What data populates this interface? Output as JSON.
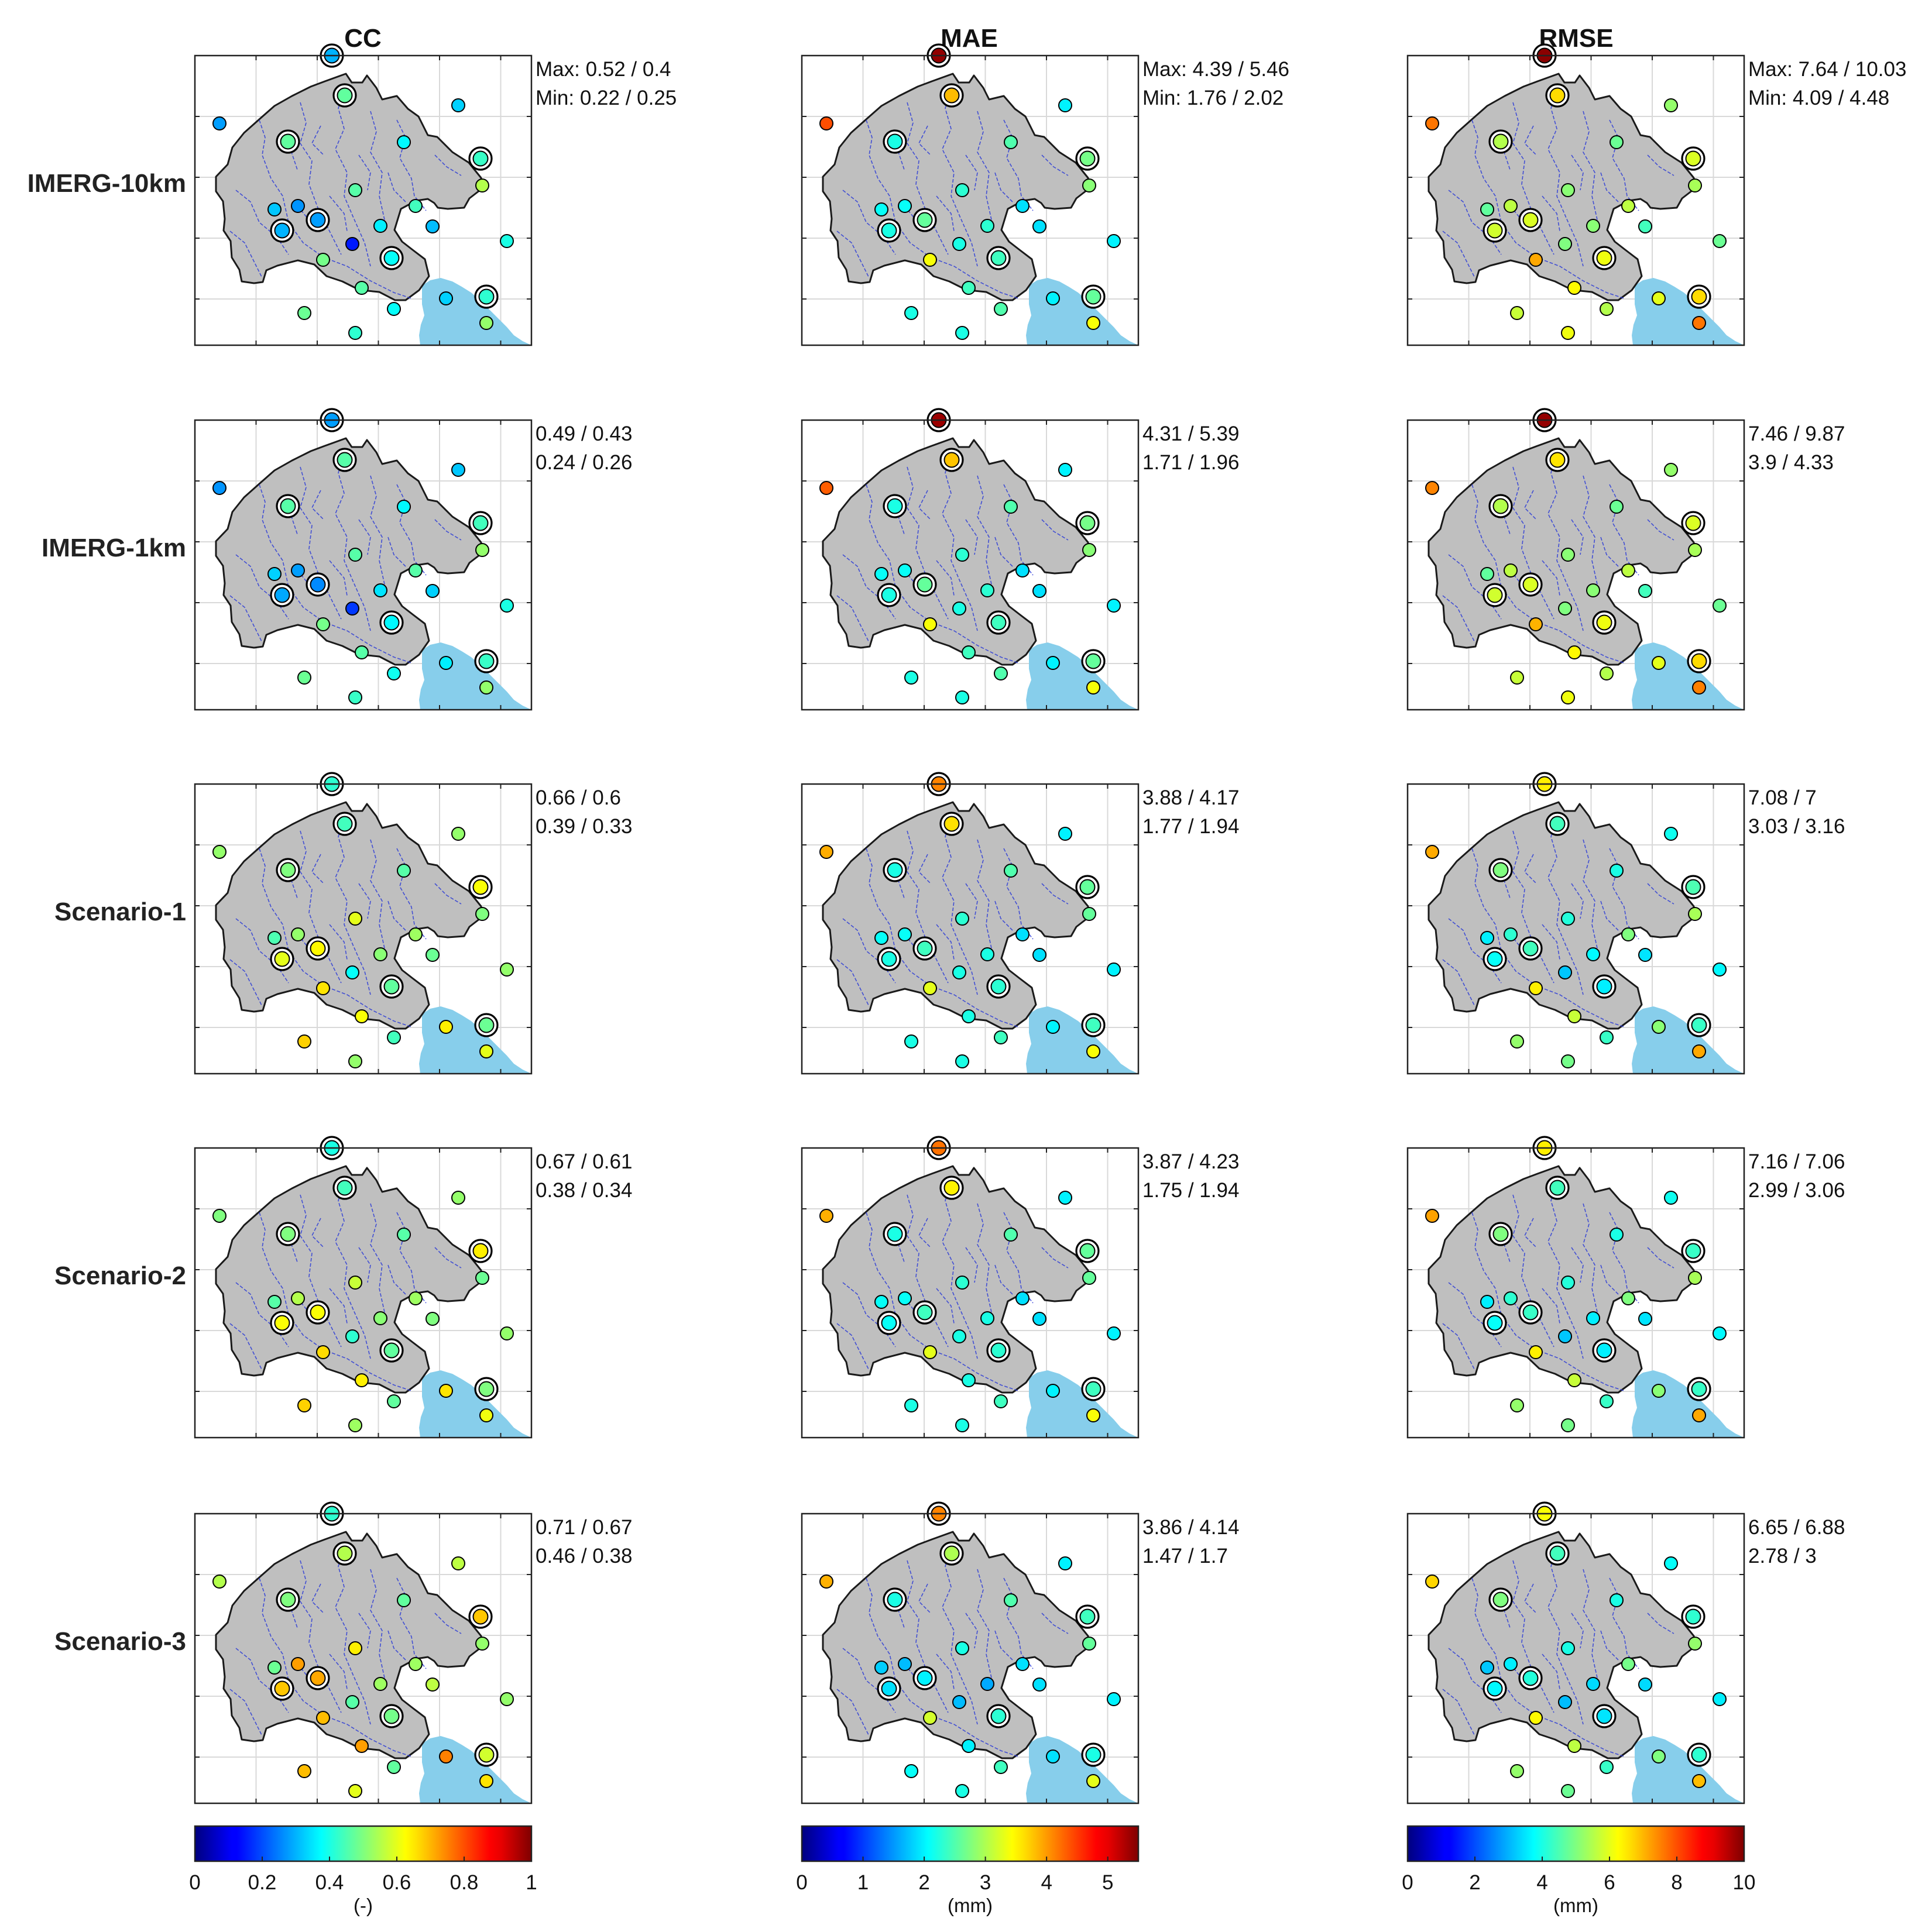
{
  "chart_data": {
    "type": "map-panel-grid",
    "title": "",
    "columns": [
      {
        "metric": "CC",
        "colorbar": {
          "min": 0,
          "max": 1,
          "ticks": [
            "0",
            "0.2",
            "0.4",
            "0.6",
            "0.8",
            "1"
          ],
          "unit": "(-)"
        }
      },
      {
        "metric": "MAE",
        "colorbar": {
          "min": 0,
          "max": 5.5,
          "ticks": [
            "0",
            "1",
            "2",
            "3",
            "4",
            "5"
          ],
          "unit": "(mm)"
        }
      },
      {
        "metric": "RMSE",
        "colorbar": {
          "min": 0,
          "max": 10,
          "ticks": [
            "0",
            "2",
            "4",
            "6",
            "8",
            "10"
          ],
          "unit": "(mm)"
        }
      }
    ],
    "colormap": "jet",
    "rows": [
      {
        "label": "IMERG-10km",
        "stats": [
          {
            "max": "0.52 / 0.4",
            "min": "0.22 / 0.25"
          },
          {
            "max": "4.39 / 5.46",
            "min": "1.76 / 2.02"
          },
          {
            "max": "7.64 / 10.03",
            "min": "4.09 / 4.48"
          }
        ]
      },
      {
        "label": "IMERG-1km",
        "stats": [
          {
            "max": "0.49 / 0.43",
            "min": "0.24 / 0.26"
          },
          {
            "max": "4.31 / 5.39",
            "min": "1.71 / 1.96"
          },
          {
            "max": "7.46 / 9.87",
            "min": "3.9 / 4.33"
          }
        ]
      },
      {
        "label": "Scenario-1",
        "stats": [
          {
            "max": "0.66 / 0.6",
            "min": "0.39 / 0.33"
          },
          {
            "max": "3.88 / 4.17",
            "min": "1.77 / 1.94"
          },
          {
            "max": "7.08 / 7",
            "min": "3.03 / 3.16"
          }
        ]
      },
      {
        "label": "Scenario-2",
        "stats": [
          {
            "max": "0.67 / 0.61",
            "min": "0.38 / 0.34"
          },
          {
            "max": "3.87 / 4.23",
            "min": "1.75 / 1.94"
          },
          {
            "max": "7.16 / 7.06",
            "min": "2.99 / 3.06"
          }
        ]
      },
      {
        "label": "Scenario-3",
        "stats": [
          {
            "max": "0.71 / 0.67",
            "min": "0.46 / 0.38"
          },
          {
            "max": "3.86 / 4.14",
            "min": "1.47 / 1.7"
          },
          {
            "max": "6.65 / 6.88",
            "min": "2.78 / 3"
          }
        ]
      }
    ],
    "stat_prefix": {
      "max": "Max: ",
      "min": "Min: "
    },
    "stations": [
      {
        "id": "s1",
        "circled": true
      },
      {
        "id": "s2",
        "circled": true
      },
      {
        "id": "s3",
        "circled": false
      },
      {
        "id": "s4",
        "circled": false
      },
      {
        "id": "s5",
        "circled": true
      },
      {
        "id": "s6",
        "circled": false
      },
      {
        "id": "s7",
        "circled": true
      },
      {
        "id": "s8",
        "circled": false
      },
      {
        "id": "s9",
        "circled": false
      },
      {
        "id": "s10",
        "circled": false
      },
      {
        "id": "s11",
        "circled": true
      },
      {
        "id": "s12",
        "circled": false
      },
      {
        "id": "s13",
        "circled": true
      },
      {
        "id": "s14",
        "circled": false
      },
      {
        "id": "s15",
        "circled": false
      },
      {
        "id": "s16",
        "circled": false
      },
      {
        "id": "s17",
        "circled": false
      },
      {
        "id": "s18",
        "circled": false
      },
      {
        "id": "s19",
        "circled": true
      },
      {
        "id": "s20",
        "circled": false
      },
      {
        "id": "s21",
        "circled": false
      },
      {
        "id": "s22",
        "circled": false
      },
      {
        "id": "s23",
        "circled": true
      },
      {
        "id": "s24",
        "circled": false
      },
      {
        "id": "s25",
        "circled": false
      },
      {
        "id": "s26",
        "circled": false
      },
      {
        "id": "s27",
        "circled": false
      }
    ],
    "values": {
      "CC": [
        [
          0.3,
          0.47,
          0.28,
          0.33,
          0.47,
          0.37,
          0.43,
          0.55,
          0.32,
          0.27,
          0.3,
          0.46,
          0.28,
          0.44,
          0.36,
          0.31,
          0.4,
          0.15,
          0.38,
          0.49,
          0.46,
          0.33,
          0.42,
          0.48,
          0.38,
          0.52,
          0.42
        ],
        [
          0.28,
          0.46,
          0.27,
          0.32,
          0.46,
          0.37,
          0.44,
          0.52,
          0.33,
          0.28,
          0.29,
          0.46,
          0.26,
          0.46,
          0.35,
          0.33,
          0.4,
          0.18,
          0.37,
          0.49,
          0.46,
          0.36,
          0.43,
          0.48,
          0.39,
          0.52,
          0.43
        ],
        [
          0.42,
          0.44,
          0.52,
          0.52,
          0.5,
          0.46,
          0.62,
          0.5,
          0.45,
          0.52,
          0.6,
          0.6,
          0.63,
          0.53,
          0.51,
          0.48,
          0.52,
          0.38,
          0.47,
          0.65,
          0.62,
          0.64,
          0.48,
          0.67,
          0.44,
          0.6,
          0.52
        ],
        [
          0.4,
          0.44,
          0.5,
          0.52,
          0.5,
          0.46,
          0.64,
          0.48,
          0.46,
          0.55,
          0.62,
          0.57,
          0.62,
          0.53,
          0.51,
          0.5,
          0.52,
          0.42,
          0.47,
          0.66,
          0.64,
          0.65,
          0.5,
          0.67,
          0.47,
          0.61,
          0.53
        ],
        [
          0.42,
          0.55,
          0.55,
          0.56,
          0.5,
          0.47,
          0.68,
          0.52,
          0.48,
          0.72,
          0.68,
          0.64,
          0.71,
          0.53,
          0.53,
          0.56,
          0.52,
          0.46,
          0.49,
          0.69,
          0.72,
          0.75,
          0.58,
          0.69,
          0.47,
          0.65,
          0.6
        ]
      ],
      "MAE": [
        [
          5.4,
          3.8,
          4.39,
          2.0,
          2.2,
          2.5,
          2.7,
          2.8,
          2.1,
          2.1,
          2.2,
          2.3,
          2.6,
          1.9,
          2.3,
          1.9,
          2.0,
          2.2,
          2.4,
          3.4,
          2.4,
          2.0,
          2.6,
          2.2,
          2.5,
          3.4,
          2.2
        ],
        [
          5.35,
          3.75,
          4.31,
          2.0,
          2.2,
          2.5,
          2.7,
          2.8,
          2.1,
          2.1,
          2.2,
          2.3,
          2.6,
          1.9,
          2.3,
          1.9,
          2.0,
          2.2,
          2.4,
          3.4,
          2.4,
          2.0,
          2.6,
          2.2,
          2.5,
          3.4,
          2.2
        ],
        [
          4.1,
          3.6,
          3.88,
          2.0,
          2.2,
          2.5,
          2.6,
          2.6,
          2.1,
          2.1,
          2.2,
          2.3,
          2.4,
          1.9,
          2.2,
          1.9,
          2.0,
          2.2,
          2.3,
          3.3,
          2.2,
          2.0,
          2.4,
          2.2,
          2.4,
          3.4,
          2.2
        ],
        [
          4.2,
          3.5,
          3.87,
          2.0,
          2.2,
          2.5,
          2.6,
          2.6,
          2.1,
          2.1,
          2.1,
          2.3,
          2.4,
          1.9,
          2.2,
          1.9,
          2.0,
          2.2,
          2.3,
          3.3,
          2.2,
          2.0,
          2.4,
          2.2,
          2.4,
          3.4,
          2.2
        ],
        [
          4.1,
          3.0,
          3.86,
          2.0,
          2.2,
          2.5,
          2.4,
          2.6,
          1.8,
          1.7,
          1.9,
          2.2,
          2.0,
          1.9,
          1.6,
          1.9,
          2.0,
          1.7,
          2.3,
          3.2,
          2.0,
          1.9,
          2.2,
          2.1,
          2.4,
          3.3,
          2.2
        ]
      ],
      "RMSE": [
        [
          9.9,
          6.6,
          7.6,
          5.2,
          5.5,
          4.8,
          5.9,
          5.4,
          4.7,
          5.6,
          5.8,
          5.1,
          5.9,
          5.6,
          5.1,
          4.4,
          4.8,
          5.0,
          6.1,
          7.1,
          6.3,
          6.0,
          6.6,
          5.7,
          5.5,
          7.6,
          6.1
        ],
        [
          9.8,
          6.5,
          7.46,
          5.2,
          5.5,
          4.8,
          5.9,
          5.4,
          4.7,
          5.6,
          5.8,
          5.1,
          5.9,
          5.6,
          5.1,
          4.4,
          4.8,
          5.0,
          6.1,
          7.0,
          6.3,
          6.0,
          6.6,
          5.7,
          5.5,
          7.5,
          6.1
        ],
        [
          6.4,
          4.4,
          7.08,
          3.9,
          5.0,
          4.0,
          4.5,
          5.4,
          3.6,
          4.2,
          3.8,
          4.1,
          4.4,
          5.0,
          3.7,
          3.5,
          3.7,
          3.2,
          3.6,
          6.4,
          5.7,
          5.1,
          4.3,
          5.2,
          4.3,
          7.1,
          4.9
        ],
        [
          6.4,
          4.4,
          7.16,
          3.9,
          5.0,
          4.0,
          4.3,
          5.4,
          3.6,
          4.2,
          3.8,
          4.1,
          4.3,
          5.0,
          3.6,
          3.5,
          3.7,
          3.2,
          3.6,
          6.4,
          5.7,
          5.1,
          4.3,
          5.2,
          4.3,
          7.1,
          4.9
        ],
        [
          6.2,
          4.4,
          6.65,
          3.8,
          5.0,
          4.0,
          4.2,
          5.2,
          3.2,
          3.6,
          3.7,
          4.0,
          4.1,
          4.9,
          3.4,
          3.4,
          3.6,
          3.1,
          3.5,
          6.3,
          5.6,
          5.0,
          4.2,
          5.2,
          4.3,
          6.9,
          4.8
        ]
      ]
    }
  }
}
